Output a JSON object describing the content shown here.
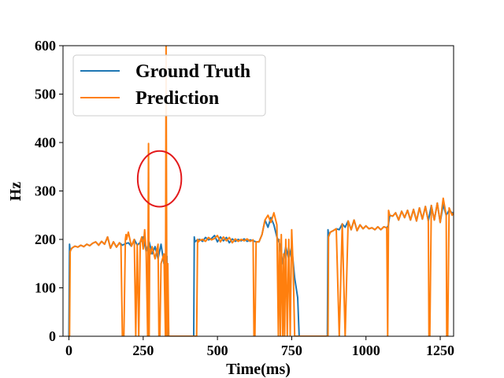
{
  "chart_data": {
    "type": "line",
    "xlabel": "Time(ms)",
    "ylabel": "Hz",
    "xlim": [
      -20,
      1295
    ],
    "ylim": [
      0,
      600
    ],
    "xticks": [
      0,
      250,
      500,
      750,
      1000,
      1250
    ],
    "yticks": [
      0,
      100,
      200,
      300,
      400,
      500,
      600
    ],
    "grid": false,
    "legend_position": "top-left",
    "series": [
      {
        "name": "Ground Truth",
        "color": "#1f77b4",
        "x": [
          0,
          2,
          4,
          6,
          10,
          20,
          30,
          40,
          50,
          60,
          70,
          80,
          90,
          100,
          110,
          120,
          130,
          140,
          150,
          160,
          170,
          180,
          190,
          200,
          210,
          220,
          230,
          240,
          250,
          260,
          270,
          280,
          290,
          300,
          310,
          320,
          325,
          330,
          332,
          340,
          420,
          422,
          424,
          430,
          440,
          450,
          460,
          470,
          480,
          490,
          500,
          510,
          520,
          530,
          540,
          550,
          560,
          570,
          580,
          590,
          600,
          610,
          620,
          630,
          640,
          650,
          660,
          670,
          680,
          690,
          700,
          710,
          720,
          730,
          740,
          750,
          760,
          770,
          775,
          780,
          870,
          872,
          874,
          880,
          890,
          900,
          910,
          920,
          930,
          940,
          950,
          960,
          970,
          980,
          990,
          1000,
          1010,
          1020,
          1030,
          1040,
          1050,
          1060,
          1070,
          1075,
          1080,
          1090,
          1100,
          1110,
          1120,
          1130,
          1140,
          1150,
          1160,
          1170,
          1180,
          1190,
          1200,
          1210,
          1220,
          1230,
          1240,
          1250,
          1260,
          1270,
          1280,
          1290,
          1295
        ],
        "y": [
          0,
          190,
          175,
          178,
          182,
          186,
          184,
          188,
          185,
          190,
          187,
          192,
          195,
          188,
          196,
          190,
          205,
          182,
          195,
          184,
          193,
          188,
          191,
          193,
          186,
          200,
          188,
          194,
          205,
          175,
          195,
          170,
          185,
          160,
          190,
          150,
          170,
          165,
          0,
          0,
          0,
          205,
          195,
          198,
          200,
          196,
          204,
          199,
          202,
          208,
          195,
          205,
          197,
          204,
          193,
          201,
          196,
          200,
          197,
          201,
          196,
          199,
          197,
          195,
          195,
          210,
          240,
          225,
          245,
          230,
          205,
          190,
          150,
          185,
          160,
          185,
          120,
          80,
          0,
          0,
          0,
          220,
          210,
          215,
          218,
          222,
          220,
          232,
          225,
          238,
          220,
          240,
          218,
          230,
          222,
          228,
          222,
          224,
          220,
          226,
          220,
          226,
          224,
          228,
          250,
          248,
          255,
          240,
          258,
          245,
          260,
          240,
          262,
          238,
          265,
          242,
          268,
          238,
          270,
          240,
          275,
          235,
          272,
          250,
          260,
          255,
          255
        ]
      },
      {
        "name": "Prediction",
        "color": "#ff7f0e",
        "x": [
          0,
          2,
          4,
          6,
          10,
          20,
          30,
          40,
          50,
          60,
          70,
          80,
          90,
          100,
          110,
          120,
          130,
          140,
          150,
          160,
          170,
          175,
          180,
          185,
          190,
          192,
          194,
          200,
          210,
          220,
          225,
          230,
          235,
          240,
          245,
          250,
          255,
          260,
          265,
          268,
          270,
          272,
          275,
          280,
          290,
          300,
          303,
          306,
          310,
          320,
          325,
          327,
          330,
          333,
          336,
          340,
          420,
          430,
          433,
          436,
          440,
          450,
          460,
          470,
          480,
          490,
          500,
          510,
          520,
          530,
          540,
          550,
          560,
          570,
          580,
          590,
          600,
          610,
          620,
          623,
          626,
          630,
          640,
          650,
          660,
          670,
          680,
          690,
          700,
          705,
          708,
          712,
          715,
          720,
          723,
          726,
          730,
          735,
          740,
          745,
          750,
          755,
          760,
          765,
          770,
          780,
          870,
          872,
          874,
          880,
          890,
          900,
          910,
          920,
          930,
          940,
          950,
          960,
          970,
          980,
          990,
          1000,
          1010,
          1020,
          1030,
          1040,
          1050,
          1060,
          1070,
          1073,
          1076,
          1080,
          1090,
          1100,
          1110,
          1120,
          1130,
          1140,
          1150,
          1160,
          1170,
          1180,
          1190,
          1200,
          1210,
          1212,
          1215,
          1220,
          1230,
          1240,
          1250,
          1260,
          1270,
          1272,
          1275,
          1280,
          1290,
          1295
        ],
        "y": [
          0,
          0,
          175,
          178,
          182,
          186,
          184,
          188,
          185,
          190,
          187,
          192,
          195,
          188,
          196,
          190,
          205,
          182,
          195,
          184,
          193,
          188,
          0,
          0,
          200,
          210,
          200,
          215,
          186,
          200,
          0,
          190,
          0,
          195,
          205,
          180,
          220,
          175,
          0,
          398,
          0,
          180,
          170,
          185,
          160,
          190,
          0,
          0,
          150,
          170,
          0,
          600,
          0,
          150,
          0,
          0,
          0,
          0,
          200,
          195,
          198,
          200,
          196,
          204,
          199,
          202,
          208,
          195,
          205,
          197,
          204,
          193,
          201,
          196,
          200,
          197,
          201,
          196,
          199,
          0,
          0,
          195,
          195,
          210,
          240,
          250,
          235,
          255,
          230,
          0,
          200,
          0,
          210,
          0,
          170,
          0,
          200,
          0,
          200,
          0,
          220,
          140,
          0,
          0,
          0,
          0,
          0,
          0,
          205,
          215,
          218,
          222,
          0,
          232,
          0,
          238,
          220,
          240,
          218,
          230,
          222,
          228,
          222,
          224,
          220,
          226,
          220,
          226,
          224,
          0,
          260,
          250,
          248,
          255,
          240,
          258,
          245,
          260,
          240,
          262,
          238,
          265,
          242,
          268,
          238,
          0,
          0,
          270,
          240,
          275,
          235,
          285,
          250,
          0,
          0,
          265,
          250,
          255
        ]
      }
    ],
    "annotations": [
      {
        "shape": "ellipse",
        "color": "#e31a1c",
        "center_x": 305,
        "center_y": 325,
        "radius_x": 147,
        "radius_y": 115
      }
    ]
  }
}
